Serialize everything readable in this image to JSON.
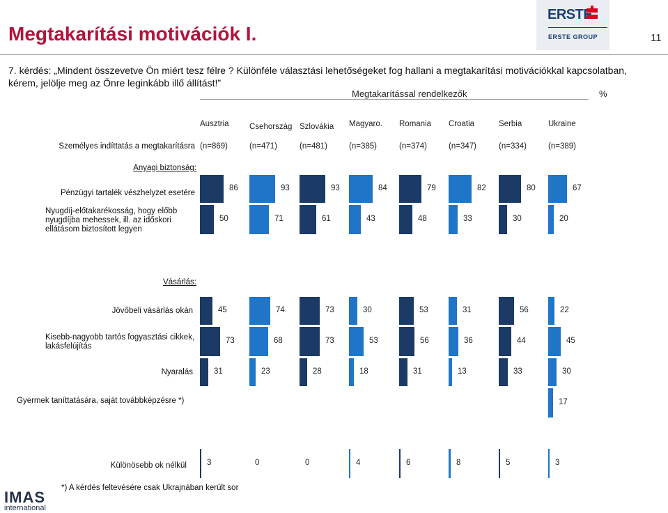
{
  "header": {
    "title": "Megtakarítási motivációk I.",
    "slide_number": "11",
    "question": "7. kérdés: „Mindent összevetve Ön miért tesz félre ? Különféle választási lehetőségeket fog hallani a megtakarítási motivációkkal kapcsolatban, kérem, jelölje meg az Önre leginkább illő állítást!”",
    "subtitle": "Megtakarítással rendelkezők",
    "unit": "%"
  },
  "logos": {
    "erste_word": "ERSTE",
    "erste_group": "ERSTE GROUP",
    "imas_word": "IMAS",
    "imas_sub": "international"
  },
  "colors": {
    "dark": "#1b3a66",
    "light": "#1f76c8"
  },
  "chart_data": {
    "type": "bar",
    "countries": [
      "Ausztria",
      "Csehország",
      "Szlovákia",
      "Magyaro.",
      "Romania",
      "Croatia",
      "Serbia",
      "Ukraine"
    ],
    "bar_colors": [
      "dark",
      "light",
      "dark",
      "light",
      "dark",
      "light",
      "dark",
      "light"
    ],
    "sample_label": "Személyes indíttatás a megtakarításra",
    "sample_sizes": [
      "(n=869)",
      "(n=471)",
      "(n=481)",
      "(n=385)",
      "(n=374)",
      "(n=347)",
      "(n=334)",
      "(n=389)"
    ],
    "sections": [
      {
        "name": "Anyagi biztonság:",
        "rows": [
          {
            "label": "Pénzügyi tartalék vészhelyzet esetére",
            "values": [
              86,
              93,
              93,
              84,
              79,
              82,
              80,
              67
            ]
          },
          {
            "label": "Nyugdíj-előtakarékosság, hogy előbb nyugdíjba mehessek, ill. az időskori ellátásom biztosított legyen",
            "values": [
              50,
              71,
              61,
              43,
              48,
              33,
              30,
              20
            ]
          }
        ]
      },
      {
        "name": "Vásárlás:",
        "rows": [
          {
            "label": "Jövőbeli vásárlás okán",
            "values": [
              45,
              74,
              73,
              30,
              53,
              31,
              56,
              22
            ]
          },
          {
            "label": "Kisebb-nagyobb tartós fogyasztási cikkek, lakásfelújítás",
            "values": [
              73,
              68,
              73,
              53,
              56,
              36,
              44,
              45
            ]
          },
          {
            "label": "Nyaralás",
            "values": [
              31,
              23,
              28,
              18,
              31,
              13,
              33,
              30
            ]
          },
          {
            "label": "Gyermek taníttatására, saját továbbképzésre *)",
            "values": [
              null,
              null,
              null,
              null,
              null,
              null,
              null,
              17
            ]
          }
        ]
      },
      {
        "name": "",
        "rows": [
          {
            "label": "Különösebb ok nélkül",
            "values": [
              3,
              0,
              0,
              4,
              6,
              8,
              5,
              3
            ]
          }
        ]
      }
    ]
  },
  "footnote": "*)  A kérdés feltevésére csak Ukrajnában került sor"
}
